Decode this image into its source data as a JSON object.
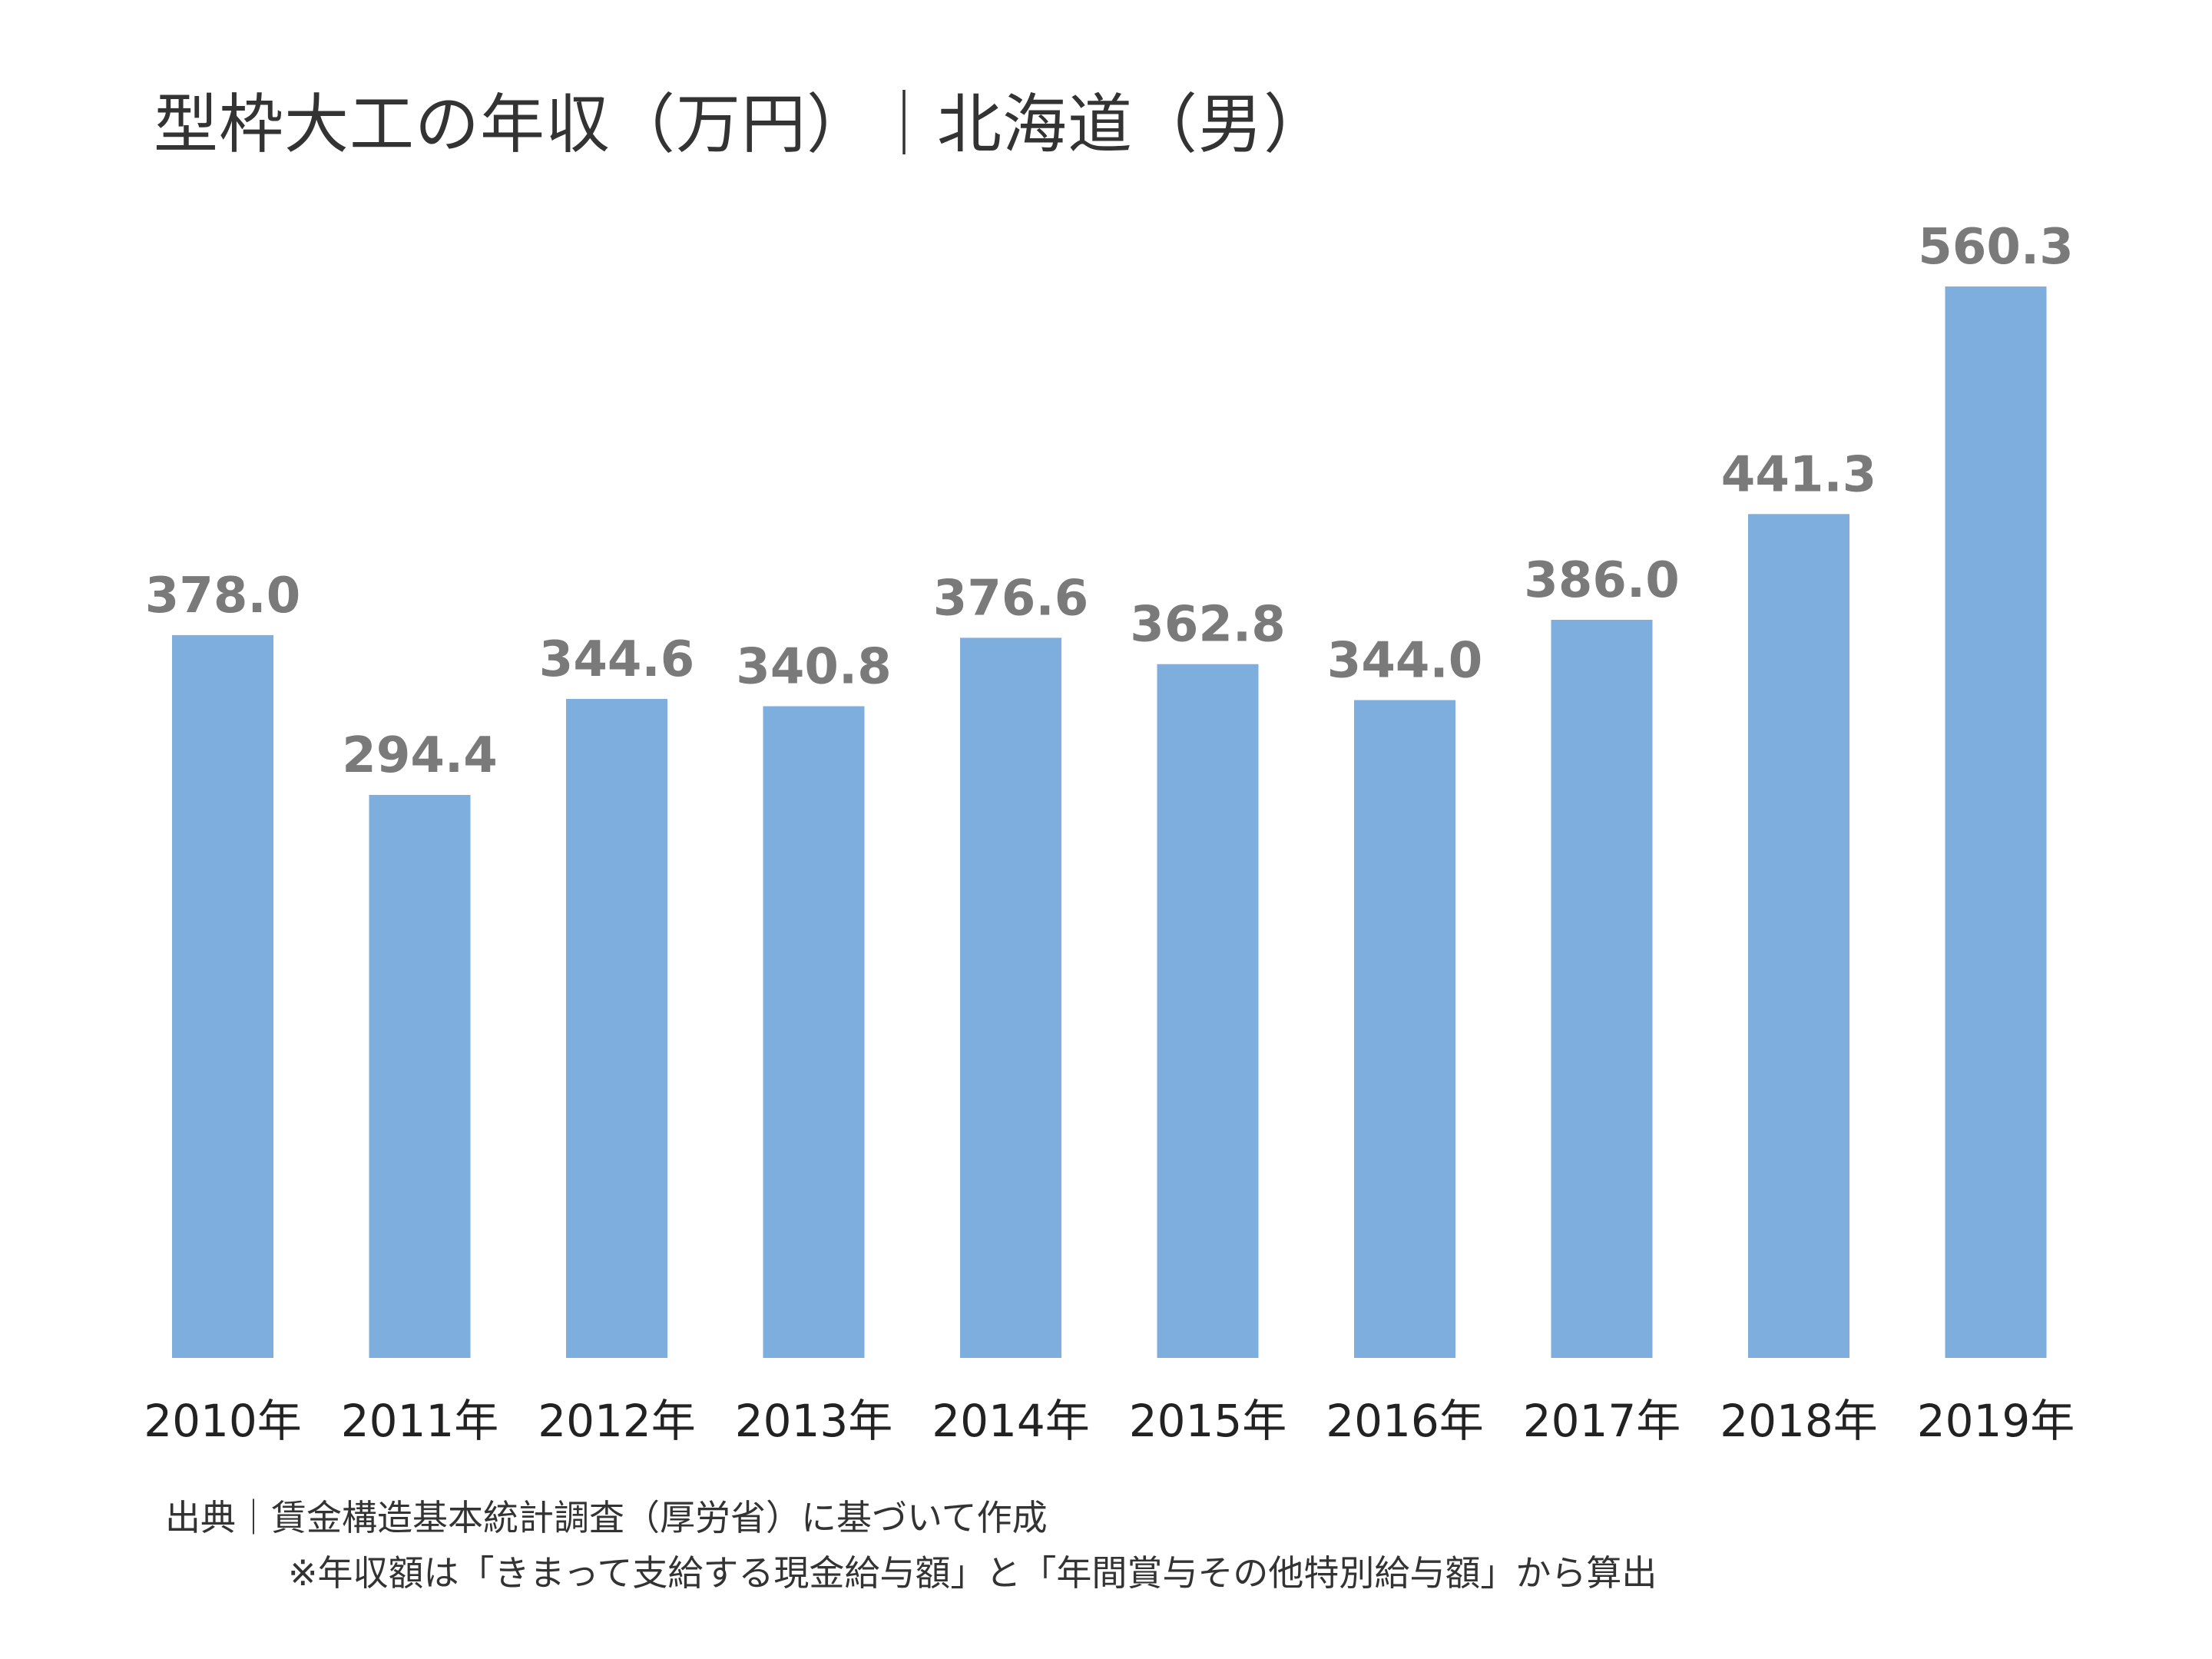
{
  "title": "型枠大工の年収（万円）｜北海道（男）",
  "source": {
    "line1": "出典｜賃金構造基本統計調査（厚労省）に基づいて作成",
    "line2": "※年収額は「きまって支給する現金給与額」と「年間賞与その他特別給与額」から算出"
  },
  "colors": {
    "bar": "#7eaedd",
    "value_label": "#7a7a7a",
    "tick_label": "#222222"
  },
  "chart_data": {
    "type": "bar",
    "title": "型枠大工の年収（万円）｜北海道（男）",
    "categories": [
      "2010年",
      "2011年",
      "2012年",
      "2013年",
      "2014年",
      "2015年",
      "2016年",
      "2017年",
      "2018年",
      "2019年"
    ],
    "values": [
      378.0,
      294.4,
      344.6,
      340.8,
      376.6,
      362.8,
      344.0,
      386.0,
      441.3,
      560.3
    ],
    "value_labels": [
      "378.0",
      "294.4",
      "344.6",
      "340.8",
      "376.6",
      "362.8",
      "344.0",
      "386.0",
      "441.3",
      "560.3"
    ],
    "ylim": [
      0,
      560.3
    ],
    "grid": false,
    "legend": "none"
  }
}
